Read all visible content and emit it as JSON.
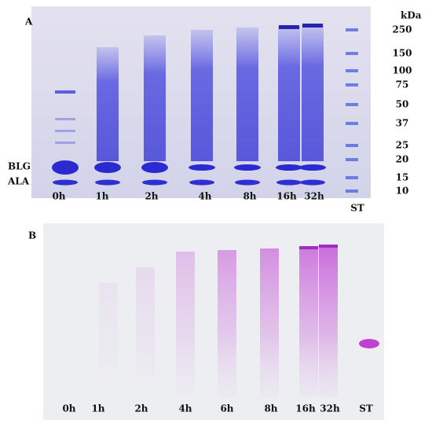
{
  "panel_a": {
    "label": "A",
    "unit": "kDa",
    "markers": [
      250,
      150,
      100,
      75,
      50,
      37,
      25,
      20,
      15,
      10
    ],
    "bands": [
      "BLG",
      "ALA"
    ],
    "lanes": [
      "0h",
      "1h",
      "2h",
      "4h",
      "8h",
      "16h",
      "32h",
      "ST"
    ]
  },
  "panel_b": {
    "label": "B",
    "lanes": [
      "0h",
      "1h",
      "2h",
      "4h",
      "6h",
      "8h",
      "16h",
      "32h",
      "ST"
    ]
  }
}
